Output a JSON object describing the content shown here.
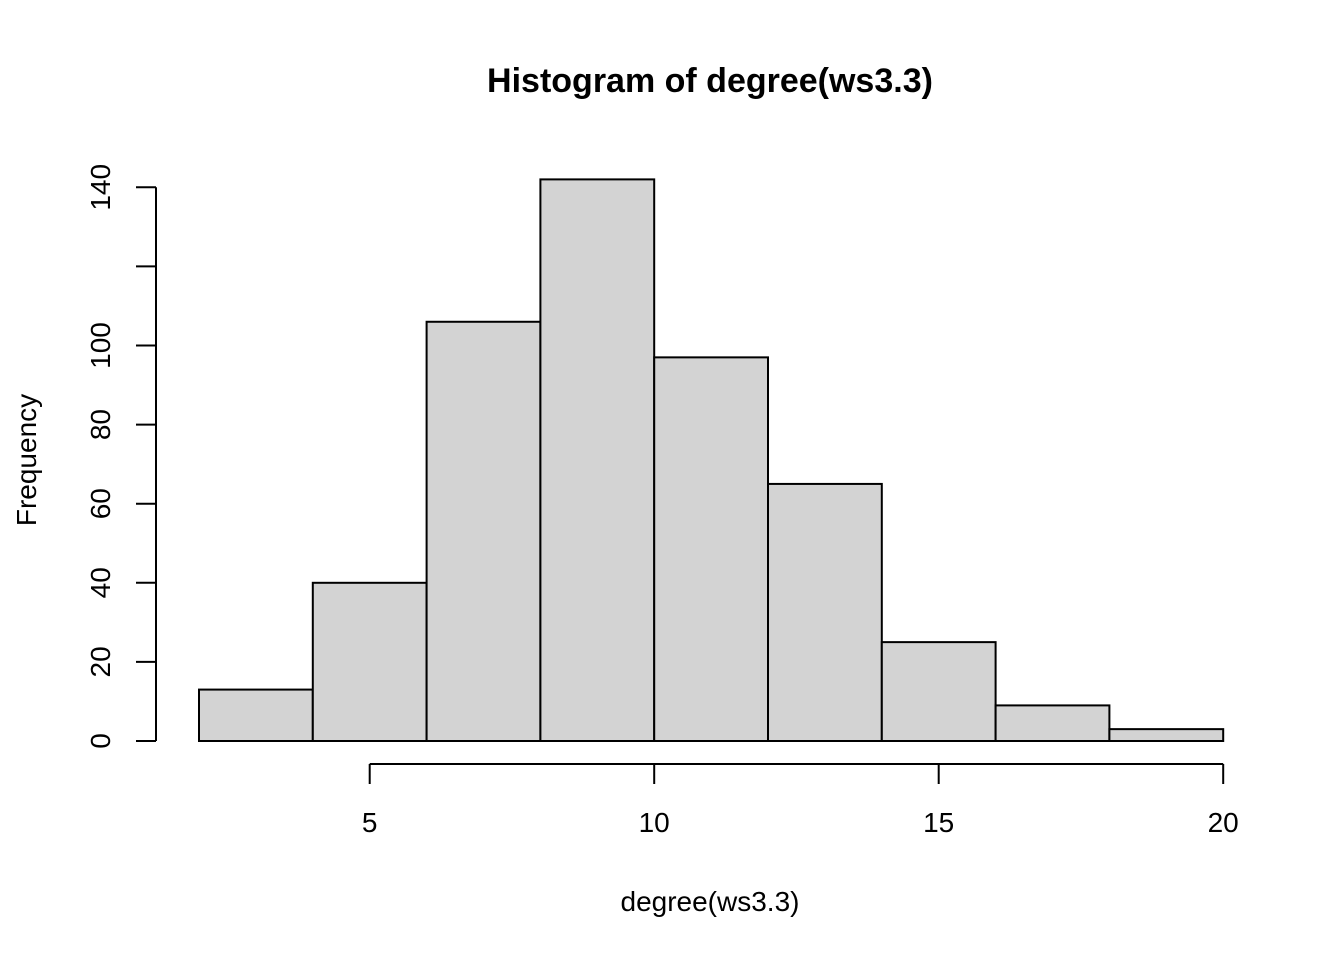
{
  "chart_data": {
    "type": "bar",
    "title": "Histogram of degree(ws3.3)",
    "xlabel": "degree(ws3.3)",
    "ylabel": "Frequency",
    "bins": [
      {
        "start": 2,
        "end": 4,
        "count": 13
      },
      {
        "start": 4,
        "end": 6,
        "count": 40
      },
      {
        "start": 6,
        "end": 8,
        "count": 106
      },
      {
        "start": 8,
        "end": 10,
        "count": 142
      },
      {
        "start": 10,
        "end": 12,
        "count": 97
      },
      {
        "start": 12,
        "end": 14,
        "count": 65
      },
      {
        "start": 14,
        "end": 16,
        "count": 25
      },
      {
        "start": 16,
        "end": 18,
        "count": 9
      },
      {
        "start": 18,
        "end": 20,
        "count": 3
      }
    ],
    "xlim": [
      2,
      20
    ],
    "ylim": [
      0,
      142
    ],
    "x_ticks": [
      5,
      10,
      15,
      20
    ],
    "y_ticks": [
      0,
      20,
      40,
      60,
      80,
      100,
      120,
      140
    ],
    "y_tick_labels": [
      "0",
      "20",
      "40",
      "60",
      "80",
      "100",
      "",
      "140"
    ],
    "bar_fill": "#d3d3d3",
    "grid": false
  }
}
